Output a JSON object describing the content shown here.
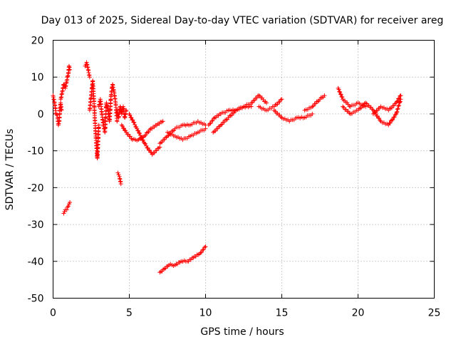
{
  "chart_data": {
    "type": "scatter",
    "title": "Day 013 of 2025, Sidereal Day-to-day VTEC variation (SDTVAR) for receiver areg",
    "xlabel": "GPS time / hours",
    "ylabel": "SDTVAR / TECUs",
    "xlim": [
      0,
      25
    ],
    "ylim": [
      -50,
      20
    ],
    "xticks": [
      0,
      5,
      10,
      15,
      20,
      25
    ],
    "yticks": [
      -50,
      -40,
      -30,
      -20,
      -10,
      0,
      10,
      20
    ],
    "xtick_labels": [
      "0",
      "5",
      "10",
      "15",
      "20",
      "25"
    ],
    "ytick_labels": [
      "-50",
      "-40",
      "-30",
      "-20",
      "-10",
      "0",
      "10",
      "20"
    ],
    "grid": true,
    "marker": "+",
    "color": "#ff0000",
    "series": [
      {
        "name": "SDTVAR",
        "segments": [
          {
            "x": [
              0.0,
              0.1,
              0.2,
              0.3,
              0.35,
              0.4,
              0.45,
              0.5,
              0.55
            ],
            "y": [
              5,
              3,
              0,
              -1,
              -3,
              -2,
              1,
              3,
              1
            ]
          },
          {
            "x": [
              0.5,
              0.6,
              0.7,
              0.8,
              0.9,
              1.0,
              1.05,
              1.1
            ],
            "y": [
              4,
              6,
              8,
              7,
              9,
              11,
              13,
              12
            ]
          },
          {
            "x": [
              0.7,
              0.8,
              0.9,
              1.0,
              1.1
            ],
            "y": [
              -27,
              -26,
              -26,
              -25,
              -24
            ]
          },
          {
            "x": [
              2.1,
              2.2,
              2.3,
              2.4
            ],
            "y": [
              13,
              14,
              12,
              10
            ]
          },
          {
            "x": [
              2.4,
              2.5,
              2.6,
              2.7,
              2.8,
              2.9,
              3.0
            ],
            "y": [
              1,
              5,
              9,
              2,
              -6,
              -12,
              -3
            ]
          },
          {
            "x": [
              3.0,
              3.1,
              3.2,
              3.3,
              3.4,
              3.5,
              3.6,
              3.7,
              3.8,
              3.9,
              4.0,
              4.1,
              4.2
            ],
            "y": [
              2,
              4,
              0,
              -3,
              -5,
              3,
              1,
              -2,
              5,
              8,
              6,
              3,
              -2
            ]
          },
          {
            "x": [
              4.2,
              4.3,
              4.4,
              4.5,
              4.6,
              4.7,
              4.8
            ],
            "y": [
              1,
              -1,
              2,
              0,
              2,
              -1,
              1
            ]
          },
          {
            "x": [
              4.25,
              4.35,
              4.45
            ],
            "y": [
              -16,
              -17,
              -19
            ]
          },
          {
            "x": [
              4.5,
              4.8,
              5.2,
              5.6,
              6.0,
              6.4,
              6.8,
              7.2
            ],
            "y": [
              -3,
              -5,
              -7,
              -7,
              -6,
              -4,
              -3,
              -2
            ]
          },
          {
            "x": [
              5.0,
              5.5,
              6.0,
              6.5,
              7.0
            ],
            "y": [
              0,
              -4,
              -8,
              -11,
              -9
            ]
          },
          {
            "x": [
              7.0,
              7.5,
              8.0,
              8.5,
              9.0,
              9.5,
              10.0
            ],
            "y": [
              -8,
              -6,
              -4,
              -3,
              -3,
              -2,
              -3
            ]
          },
          {
            "x": [
              7.5,
              8.0,
              8.5,
              9.0,
              9.5,
              10.0
            ],
            "y": [
              -5,
              -6,
              -7,
              -6,
              -5,
              -4
            ]
          },
          {
            "x": [
              7.0,
              7.3,
              7.6,
              8.0,
              8.4,
              8.8,
              9.2,
              9.6,
              10.0
            ],
            "y": [
              -43,
              -42,
              -41,
              -41,
              -40,
              -40,
              -39,
              -38,
              -36
            ]
          },
          {
            "x": [
              10.2,
              10.6,
              11.0,
              11.5,
              12.0,
              12.5,
              13.0
            ],
            "y": [
              -3,
              -1,
              0,
              1,
              1,
              2,
              2
            ]
          },
          {
            "x": [
              10.5,
              11.0,
              11.5,
              12.0,
              12.5,
              13.0,
              13.5,
              14.0
            ],
            "y": [
              -5,
              -3,
              -1,
              1,
              2,
              3,
              5,
              3
            ]
          },
          {
            "x": [
              13.5,
              14.0,
              14.5,
              15.0
            ],
            "y": [
              2,
              1,
              2,
              4
            ]
          },
          {
            "x": [
              14.5,
              15.0,
              15.5,
              16.0,
              16.5,
              17.0
            ],
            "y": [
              1,
              -1,
              -2,
              -1,
              -1,
              0
            ]
          },
          {
            "x": [
              16.5,
              17.0,
              17.5,
              17.8
            ],
            "y": [
              1,
              2,
              4,
              5
            ]
          },
          {
            "x": [
              18.7,
              19.0,
              19.5,
              20.0,
              20.5
            ],
            "y": [
              7,
              4,
              2,
              3,
              2
            ]
          },
          {
            "x": [
              19.0,
              19.5,
              20.0,
              20.5,
              21.0,
              21.5,
              22.0,
              22.5,
              22.8
            ],
            "y": [
              2,
              0,
              1,
              3,
              1,
              -2,
              -3,
              0,
              4
            ]
          },
          {
            "x": [
              21.0,
              21.5,
              22.0,
              22.5,
              22.8
            ],
            "y": [
              0,
              2,
              1,
              3,
              5
            ]
          }
        ]
      }
    ]
  }
}
